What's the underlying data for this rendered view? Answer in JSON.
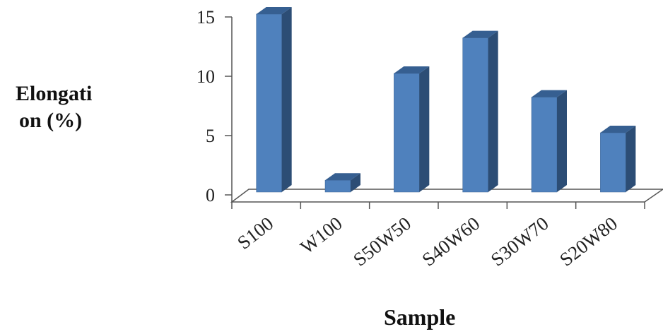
{
  "chart_data": {
    "type": "bar",
    "categories": [
      "S100",
      "W100",
      "S50W50",
      "S40W60",
      "S30W70",
      "S20W80"
    ],
    "values": [
      15,
      1,
      10,
      13,
      8,
      5
    ],
    "ylabel_lines": [
      "Elongati",
      "on (%)"
    ],
    "xlabel": "Sample",
    "ylim": [
      0,
      15
    ],
    "yticks": [
      "0",
      "5",
      "10",
      "15"
    ],
    "bar_color": "#4F81BD",
    "bar_side_color": "#2C4D75",
    "bar_top_color": "#365F91",
    "grid": false,
    "legend": "none"
  }
}
